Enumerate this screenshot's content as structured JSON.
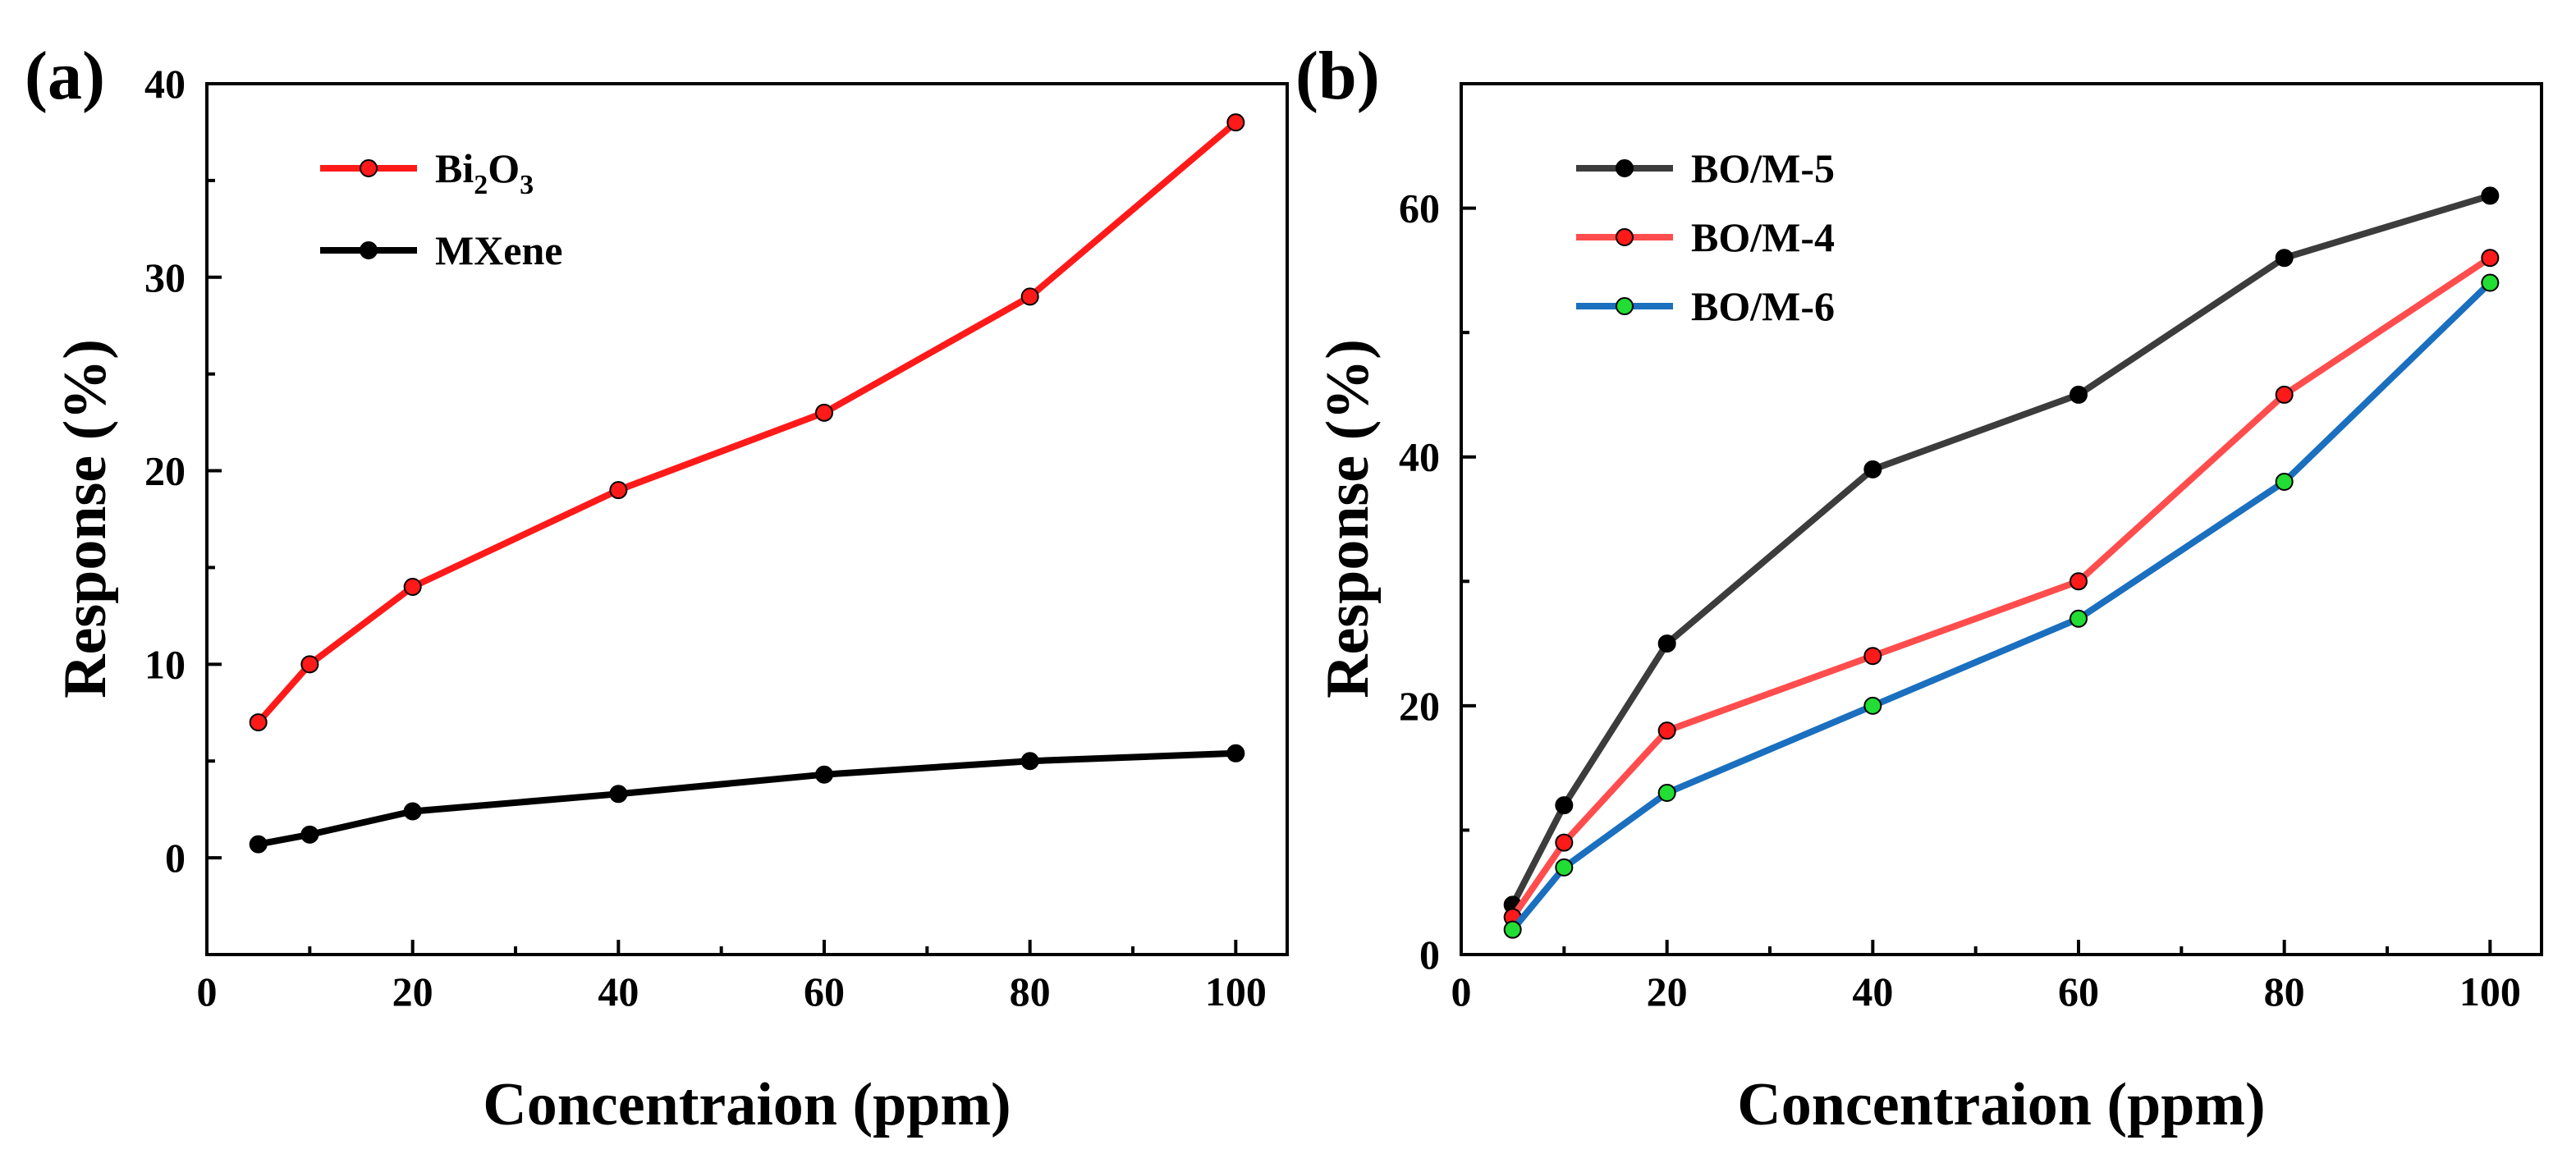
{
  "chart_data": [
    {
      "panel": "(a)",
      "type": "line",
      "xlabel": "Concentraion (ppm)",
      "ylabel": "Response (%)",
      "xlim": [
        0,
        105
      ],
      "ylim": [
        -5,
        40
      ],
      "xticks": [
        0,
        20,
        40,
        60,
        80,
        100
      ],
      "yticks": [
        0,
        10,
        20,
        30,
        40
      ],
      "legend_position": "top-left",
      "series": [
        {
          "name": "Bi2O3",
          "legend_parts": [
            [
              "Bi",
              false
            ],
            [
              "2",
              true
            ],
            [
              "O",
              false
            ],
            [
              "3",
              true
            ]
          ],
          "color": "#ff1a1a",
          "marker_fill": "#ff1a1a",
          "x": [
            5,
            10,
            20,
            40,
            60,
            80,
            100
          ],
          "values": [
            7,
            10,
            14,
            19,
            23,
            29,
            38
          ]
        },
        {
          "name": "MXene",
          "legend_parts": [
            [
              "MXene",
              false
            ]
          ],
          "color": "#000000",
          "marker_fill": "#000000",
          "x": [
            5,
            10,
            20,
            40,
            60,
            80,
            100
          ],
          "values": [
            0.7,
            1.2,
            2.4,
            3.3,
            4.3,
            5.0,
            5.4
          ]
        }
      ]
    },
    {
      "panel": "(b)",
      "type": "line",
      "xlabel": "Concentraion (ppm)",
      "ylabel": "Response (%)",
      "xlim": [
        0,
        105
      ],
      "ylim": [
        0,
        70
      ],
      "xticks": [
        0,
        20,
        40,
        60,
        80,
        100
      ],
      "yticks": [
        0,
        20,
        40,
        60
      ],
      "legend_position": "top-left",
      "series": [
        {
          "name": "BO/M-5",
          "legend_parts": [
            [
              "BO/M-5",
              false
            ]
          ],
          "color": "#3c3c3c",
          "marker_fill": "#000000",
          "x": [
            5,
            10,
            20,
            40,
            60,
            80,
            100
          ],
          "values": [
            4,
            12,
            25,
            39,
            45,
            56,
            61
          ]
        },
        {
          "name": "BO/M-4",
          "legend_parts": [
            [
              "BO/M-4",
              false
            ]
          ],
          "color": "#ff4d4d",
          "marker_fill": "#ff1a1a",
          "x": [
            5,
            10,
            20,
            40,
            60,
            80,
            100
          ],
          "values": [
            3,
            9,
            18,
            24,
            30,
            45,
            56
          ]
        },
        {
          "name": "BO/M-6",
          "legend_parts": [
            [
              "BO/M-6",
              false
            ]
          ],
          "color": "#1a6fbf",
          "marker_fill": "#22dd33",
          "x": [
            5,
            10,
            20,
            40,
            60,
            80,
            100
          ],
          "values": [
            2,
            7,
            13,
            20,
            27,
            38,
            54
          ]
        }
      ]
    }
  ]
}
